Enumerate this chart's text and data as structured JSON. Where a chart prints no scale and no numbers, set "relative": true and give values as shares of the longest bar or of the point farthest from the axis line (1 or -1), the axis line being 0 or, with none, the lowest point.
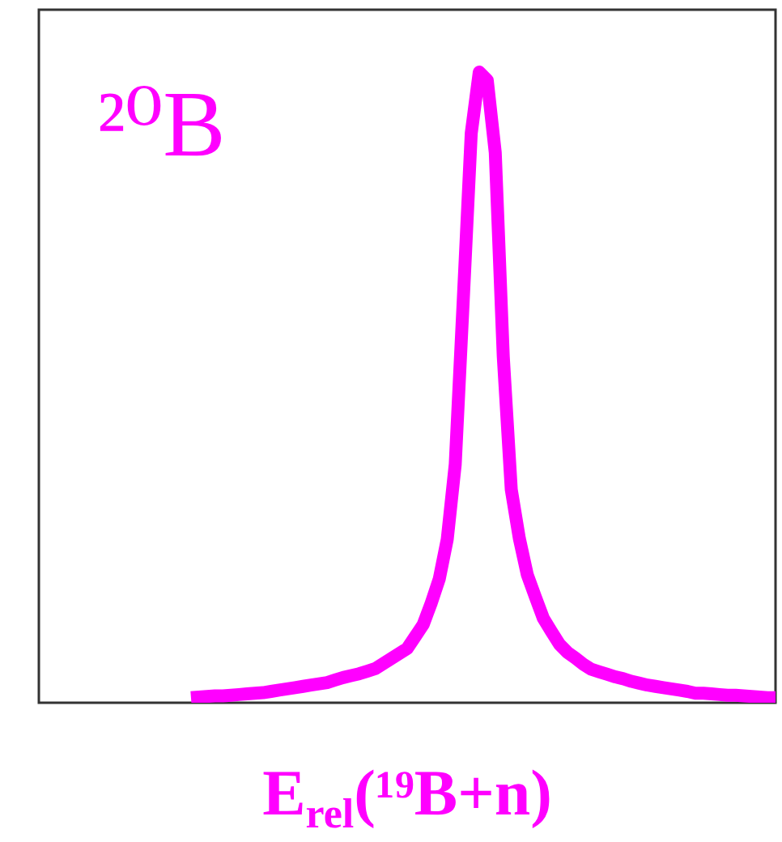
{
  "chart_data": {
    "type": "line",
    "title": "²⁰B",
    "xlabel": "E$_{rel}$(¹⁹B+n)",
    "relative": true,
    "color": "#ff00ff",
    "marker": "none",
    "line_style": "solid",
    "grid": false,
    "legend": false,
    "tick_labels": false,
    "categories": [
      null,
      null,
      null,
      null,
      null,
      null,
      null,
      null,
      null,
      null,
      null,
      null,
      null,
      null,
      null,
      null,
      null,
      null,
      null,
      null,
      null,
      null,
      null,
      null,
      null,
      null,
      null,
      null,
      null,
      null,
      null,
      null,
      null,
      null,
      null,
      null,
      null,
      null,
      null,
      null,
      null,
      null,
      null,
      null,
      null,
      null,
      null,
      null,
      null,
      null,
      null,
      null,
      null,
      null,
      null,
      null,
      null,
      null,
      null,
      null,
      null,
      null,
      null,
      null,
      null,
      null,
      null,
      null,
      null,
      null,
      null,
      null,
      null,
      null,
      null,
      null,
      null,
      null,
      null,
      null,
      null,
      null,
      null,
      null,
      null,
      null,
      null,
      null,
      null,
      null,
      null,
      null,
      null
    ],
    "values": [
      null,
      null,
      null,
      null,
      null,
      null,
      null,
      null,
      null,
      null,
      null,
      null,
      null,
      null,
      null,
      null,
      null,
      null,
      null,
      0.008,
      0.009,
      0.01,
      0.011,
      0.011,
      0.012,
      0.013,
      0.014,
      0.015,
      0.016,
      0.018,
      0.02,
      0.022,
      0.024,
      0.026,
      0.028,
      0.03,
      0.032,
      0.036,
      0.04,
      0.043,
      0.046,
      0.05,
      0.054,
      0.062,
      0.07,
      0.078,
      0.086,
      0.105,
      0.124,
      0.158,
      0.196,
      0.259,
      0.378,
      0.638,
      0.903,
      1,
      0.987,
      0.872,
      0.549,
      0.338,
      0.261,
      0.203,
      0.168,
      0.134,
      0.113,
      0.093,
      0.08,
      0.071,
      0.061,
      0.053,
      0.049,
      0.045,
      0.041,
      0.038,
      0.034,
      0.031,
      0.028,
      0.026,
      0.024,
      0.022,
      0.02,
      0.018,
      0.015,
      0.015,
      0.014,
      0.013,
      0.012,
      0.012,
      0.011,
      0.01,
      0.009,
      0.008,
      0.008
    ]
  }
}
